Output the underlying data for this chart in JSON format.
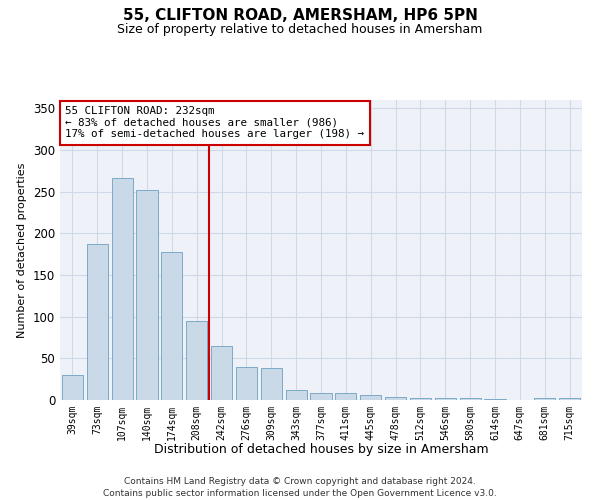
{
  "title": "55, CLIFTON ROAD, AMERSHAM, HP6 5PN",
  "subtitle": "Size of property relative to detached houses in Amersham",
  "xlabel": "Distribution of detached houses by size in Amersham",
  "ylabel": "Number of detached properties",
  "categories": [
    "39sqm",
    "73sqm",
    "107sqm",
    "140sqm",
    "174sqm",
    "208sqm",
    "242sqm",
    "276sqm",
    "309sqm",
    "343sqm",
    "377sqm",
    "411sqm",
    "445sqm",
    "478sqm",
    "512sqm",
    "546sqm",
    "580sqm",
    "614sqm",
    "647sqm",
    "681sqm",
    "715sqm"
  ],
  "values": [
    30,
    187,
    267,
    252,
    178,
    95,
    65,
    40,
    38,
    12,
    9,
    8,
    6,
    4,
    3,
    3,
    2,
    1,
    0,
    2,
    2
  ],
  "bar_color": "#c9d9e8",
  "bar_edge_color": "#7aaac8",
  "grid_color": "#d0d8e8",
  "bg_color": "#eef2f8",
  "ref_line_x": 5.5,
  "annotation_text": "55 CLIFTON ROAD: 232sqm\n← 83% of detached houses are smaller (986)\n17% of semi-detached houses are larger (198) →",
  "annotation_box_color": "#ffffff",
  "annotation_box_edge_color": "#cc0000",
  "ref_line_color": "#cc0000",
  "footer_line1": "Contains HM Land Registry data © Crown copyright and database right 2024.",
  "footer_line2": "Contains public sector information licensed under the Open Government Licence v3.0.",
  "ylim": [
    0,
    360
  ],
  "yticks": [
    0,
    50,
    100,
    150,
    200,
    250,
    300,
    350
  ]
}
